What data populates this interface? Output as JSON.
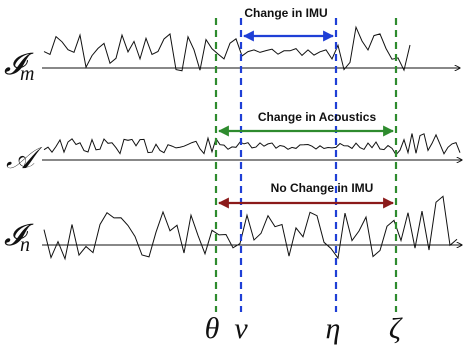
{
  "annotations": {
    "imu_change": "Change in IMU",
    "acoustic_change": "Change in Acoustics",
    "no_imu_change": "No Change in IMU"
  },
  "signals": [
    {
      "id": "imu-m",
      "label": "𝓘",
      "subscript": "m"
    },
    {
      "id": "acoustic",
      "label": "𝒜",
      "subscript": ""
    },
    {
      "id": "imu-n",
      "label": "𝓘",
      "subscript": "n"
    }
  ],
  "markers": {
    "theta": "θ",
    "nu": "ν",
    "eta": "η",
    "zeta": "ζ"
  },
  "colors": {
    "green": "#2e8b2e",
    "blue": "#1f3fd6",
    "red": "#8b1a1a",
    "signal": "#111111"
  }
}
